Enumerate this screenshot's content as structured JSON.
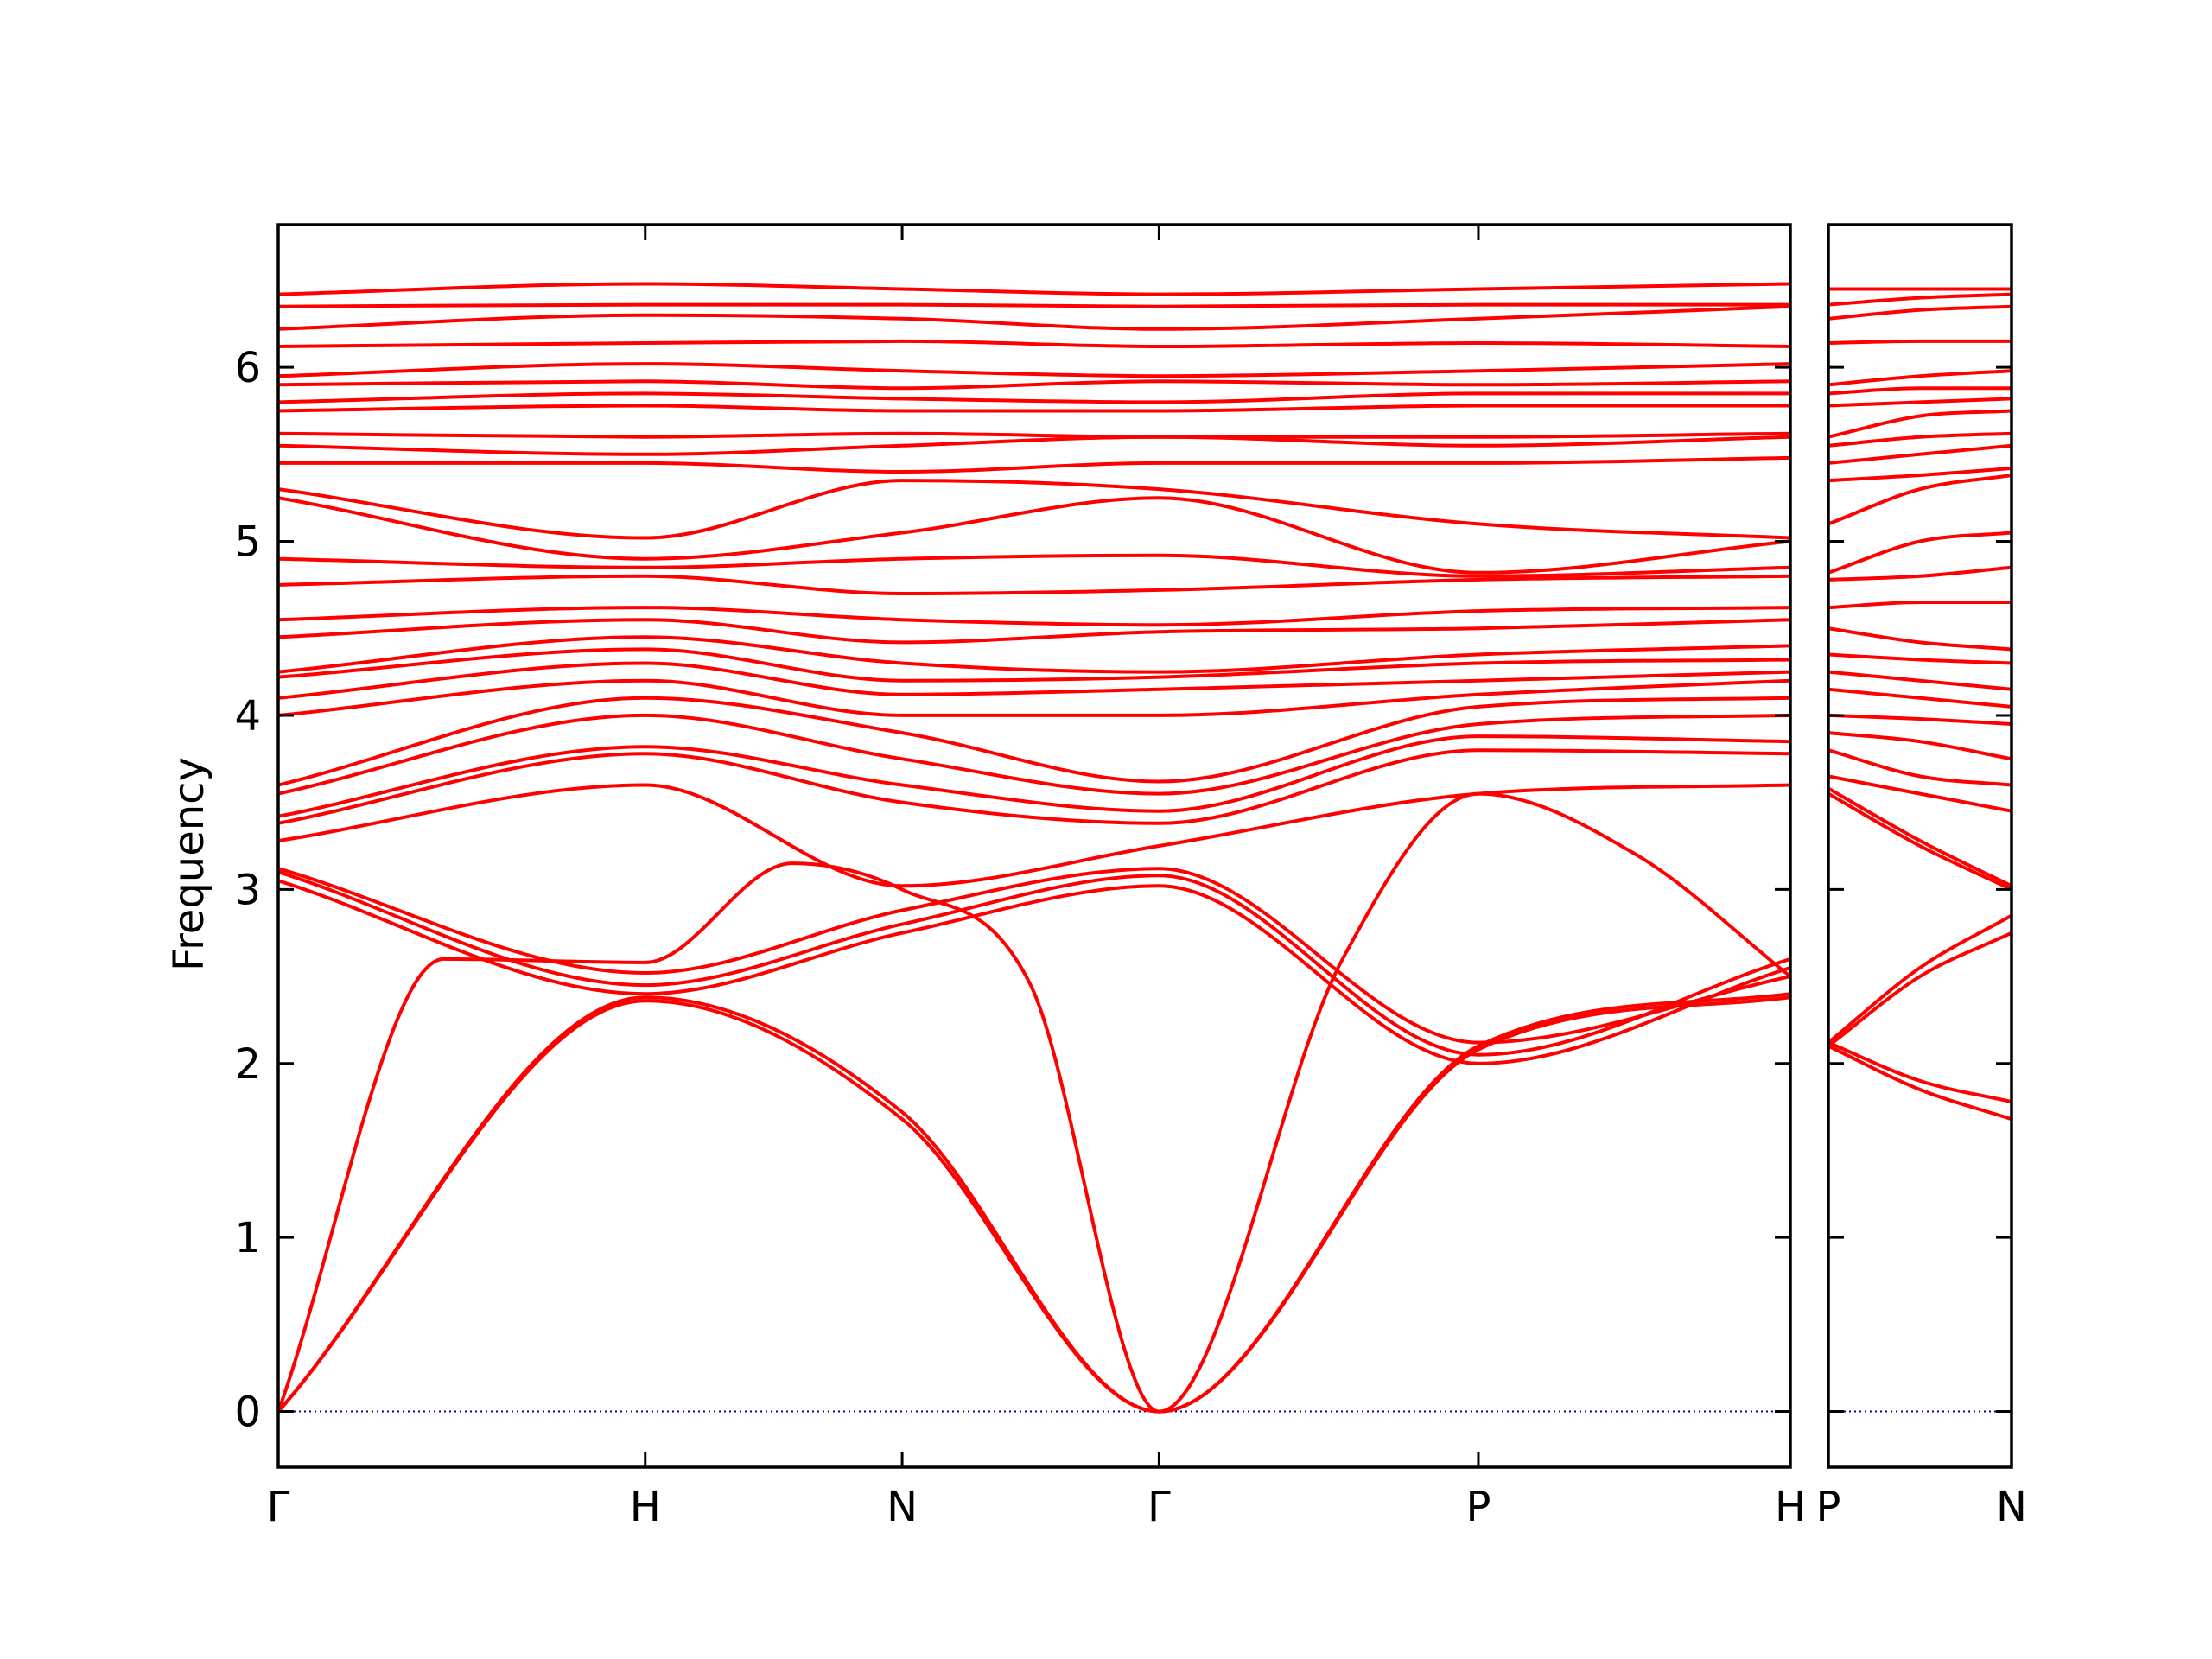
{
  "chart_data": {
    "type": "line",
    "ylabel": "Frequency",
    "ylim": [
      -0.32,
      6.82
    ],
    "yticks": [
      0,
      1,
      2,
      3,
      4,
      5,
      6
    ],
    "colors": {
      "bands": "#ff0000",
      "zero_line": "#0000aa",
      "frame": "#000000"
    },
    "grid": false,
    "panels": [
      {
        "name": "main",
        "x_range": [
          0,
          4.12
        ],
        "x_ticks": [
          {
            "label": "Γ",
            "x": 0
          },
          {
            "label": "H",
            "x": 1.0
          },
          {
            "label": "N",
            "x": 1.7
          },
          {
            "label": "Γ",
            "x": 2.4
          },
          {
            "label": "P",
            "x": 3.27
          },
          {
            "label": "H",
            "x": 4.12
          }
        ],
        "bands": [
          {
            "x": [
              0,
              1.0,
              1.7,
              2.4,
              3.27,
              4.12
            ],
            "y": [
              0,
              2.36,
              1.68,
              0,
              2.08,
              2.38
            ]
          },
          {
            "x": [
              0,
              1.0,
              1.7,
              2.4,
              3.27,
              4.12
            ],
            "y": [
              0,
              2.38,
              1.72,
              0,
              2.1,
              2.4
            ]
          },
          {
            "x": [
              0,
              0.45,
              1.0,
              1.4,
              1.7,
              2.05,
              2.4,
              2.9,
              3.27,
              3.7,
              4.12
            ],
            "y": [
              0,
              2.6,
              2.58,
              3.15,
              3.0,
              2.45,
              0,
              2.6,
              3.55,
              3.2,
              2.5
            ]
          },
          {
            "x": [
              0,
              1.0,
              1.7,
              2.4,
              3.27,
              4.12
            ],
            "y": [
              3.05,
              2.4,
              2.75,
              3.02,
              2.0,
              2.55
            ]
          },
          {
            "x": [
              0,
              1.0,
              1.7,
              2.4,
              3.27,
              4.12
            ],
            "y": [
              3.1,
              2.45,
              2.8,
              3.08,
              2.05,
              2.6
            ]
          },
          {
            "x": [
              0,
              1.0,
              1.7,
              2.4,
              3.27,
              4.12
            ],
            "y": [
              3.12,
              2.52,
              2.88,
              3.12,
              2.12,
              2.5
            ]
          },
          {
            "x": [
              0,
              1.0,
              1.7,
              2.4,
              3.27,
              4.12
            ],
            "y": [
              3.28,
              3.6,
              3.02,
              3.25,
              3.55,
              3.6
            ]
          },
          {
            "x": [
              0,
              1.0,
              1.7,
              2.4,
              3.27,
              4.12
            ],
            "y": [
              3.38,
              3.78,
              3.5,
              3.38,
              3.8,
              3.78
            ]
          },
          {
            "x": [
              0,
              1.0,
              1.7,
              2.4,
              3.27,
              4.12
            ],
            "y": [
              3.42,
              3.82,
              3.6,
              3.45,
              3.88,
              3.85
            ]
          },
          {
            "x": [
              0,
              1.0,
              1.7,
              2.4,
              3.27,
              4.12
            ],
            "y": [
              3.55,
              4.0,
              3.75,
              3.55,
              3.95,
              4.0
            ]
          },
          {
            "x": [
              0,
              1.0,
              1.7,
              2.4,
              3.27,
              4.12
            ],
            "y": [
              3.6,
              4.1,
              3.9,
              3.62,
              4.05,
              4.1
            ]
          },
          {
            "x": [
              0,
              1.0,
              1.7,
              2.4,
              3.27,
              4.12
            ],
            "y": [
              4.0,
              4.2,
              4.0,
              4.0,
              4.12,
              4.2
            ]
          },
          {
            "x": [
              0,
              1.0,
              1.7,
              2.4,
              3.27,
              4.12
            ],
            "y": [
              4.1,
              4.3,
              4.12,
              4.15,
              4.2,
              4.25
            ]
          },
          {
            "x": [
              0,
              1.0,
              1.7,
              2.4,
              3.27,
              4.12
            ],
            "y": [
              4.22,
              4.38,
              4.2,
              4.22,
              4.3,
              4.32
            ]
          },
          {
            "x": [
              0,
              1.0,
              1.7,
              2.4,
              3.27,
              4.12
            ],
            "y": [
              4.25,
              4.45,
              4.3,
              4.25,
              4.35,
              4.4
            ]
          },
          {
            "x": [
              0,
              1.0,
              1.7,
              2.4,
              3.27,
              4.12
            ],
            "y": [
              4.45,
              4.55,
              4.42,
              4.48,
              4.5,
              4.55
            ]
          },
          {
            "x": [
              0,
              1.0,
              1.7,
              2.4,
              3.27,
              4.12
            ],
            "y": [
              4.55,
              4.62,
              4.55,
              4.52,
              4.6,
              4.62
            ]
          },
          {
            "x": [
              0,
              1.0,
              1.7,
              2.4,
              3.27,
              4.12
            ],
            "y": [
              4.75,
              4.8,
              4.7,
              4.72,
              4.78,
              4.8
            ]
          },
          {
            "x": [
              0,
              1.0,
              1.7,
              2.4,
              3.27,
              4.12
            ],
            "y": [
              4.9,
              4.85,
              4.9,
              4.92,
              4.8,
              4.85
            ]
          },
          {
            "x": [
              0,
              1.0,
              1.7,
              2.4,
              3.27,
              4.12
            ],
            "y": [
              5.25,
              4.9,
              5.05,
              5.25,
              4.82,
              5.0
            ]
          },
          {
            "x": [
              0,
              1.0,
              1.7,
              2.4,
              3.27,
              4.12
            ],
            "y": [
              5.3,
              5.02,
              5.35,
              5.3,
              5.1,
              5.02
            ]
          },
          {
            "x": [
              0,
              1.0,
              1.7,
              2.4,
              3.27,
              4.12
            ],
            "y": [
              5.45,
              5.45,
              5.4,
              5.45,
              5.45,
              5.48
            ]
          },
          {
            "x": [
              0,
              1.0,
              1.7,
              2.4,
              3.27,
              4.12
            ],
            "y": [
              5.55,
              5.5,
              5.55,
              5.6,
              5.55,
              5.6
            ]
          },
          {
            "x": [
              0,
              1.0,
              1.7,
              2.4,
              3.27,
              4.12
            ],
            "y": [
              5.62,
              5.6,
              5.62,
              5.6,
              5.6,
              5.62
            ]
          },
          {
            "x": [
              0,
              1.0,
              1.7,
              2.4,
              3.27,
              4.12
            ],
            "y": [
              5.75,
              5.78,
              5.75,
              5.75,
              5.78,
              5.78
            ]
          },
          {
            "x": [
              0,
              1.0,
              1.7,
              2.4,
              3.27,
              4.12
            ],
            "y": [
              5.8,
              5.85,
              5.82,
              5.8,
              5.85,
              5.85
            ]
          },
          {
            "x": [
              0,
              1.0,
              1.7,
              2.4,
              3.27,
              4.12
            ],
            "y": [
              5.9,
              5.92,
              5.88,
              5.92,
              5.9,
              5.92
            ]
          },
          {
            "x": [
              0,
              1.0,
              1.7,
              2.4,
              3.27,
              4.12
            ],
            "y": [
              5.95,
              6.02,
              5.98,
              5.95,
              5.98,
              6.02
            ]
          },
          {
            "x": [
              0,
              1.0,
              1.7,
              2.4,
              3.27,
              4.12
            ],
            "y": [
              6.12,
              6.14,
              6.15,
              6.12,
              6.14,
              6.12
            ]
          },
          {
            "x": [
              0,
              1.0,
              1.7,
              2.4,
              3.27,
              4.12
            ],
            "y": [
              6.22,
              6.3,
              6.28,
              6.22,
              6.28,
              6.35
            ]
          },
          {
            "x": [
              0,
              1.0,
              1.7,
              2.4,
              3.27,
              4.12
            ],
            "y": [
              6.35,
              6.36,
              6.36,
              6.35,
              6.36,
              6.36
            ]
          },
          {
            "x": [
              0,
              1.0,
              1.7,
              2.4,
              3.27,
              4.12
            ],
            "y": [
              6.42,
              6.48,
              6.45,
              6.42,
              6.45,
              6.48
            ]
          }
        ]
      },
      {
        "name": "side",
        "x_range": [
          0,
          1.0
        ],
        "x_ticks": [
          {
            "label": "P",
            "x": 0
          },
          {
            "label": "N",
            "x": 1.0
          }
        ],
        "bands": [
          {
            "x": [
              0,
              0.5,
              1.0
            ],
            "y": [
              2.1,
              1.85,
              1.68
            ]
          },
          {
            "x": [
              0,
              0.5,
              1.0
            ],
            "y": [
              2.12,
              1.9,
              1.78
            ]
          },
          {
            "x": [
              0,
              0.5,
              1.0
            ],
            "y": [
              2.1,
              2.5,
              2.75
            ]
          },
          {
            "x": [
              0,
              0.5,
              1.0
            ],
            "y": [
              2.12,
              2.55,
              2.85
            ]
          },
          {
            "x": [
              0,
              0.5,
              1.0
            ],
            "y": [
              3.55,
              3.25,
              3.0
            ]
          },
          {
            "x": [
              0,
              0.5,
              1.0
            ],
            "y": [
              3.58,
              3.28,
              3.02
            ]
          },
          {
            "x": [
              0,
              0.5,
              1.0
            ],
            "y": [
              3.65,
              3.55,
              3.45
            ]
          },
          {
            "x": [
              0,
              0.5,
              1.0
            ],
            "y": [
              3.8,
              3.65,
              3.6
            ]
          },
          {
            "x": [
              0,
              0.5,
              1.0
            ],
            "y": [
              3.9,
              3.85,
              3.75
            ]
          },
          {
            "x": [
              0,
              0.5,
              1.0
            ],
            "y": [
              4.0,
              3.98,
              3.95
            ]
          },
          {
            "x": [
              0,
              0.5,
              1.0
            ],
            "y": [
              4.15,
              4.1,
              4.05
            ]
          },
          {
            "x": [
              0,
              0.5,
              1.0
            ],
            "y": [
              4.25,
              4.2,
              4.15
            ]
          },
          {
            "x": [
              0,
              0.5,
              1.0
            ],
            "y": [
              4.35,
              4.32,
              4.3
            ]
          },
          {
            "x": [
              0,
              0.5,
              1.0
            ],
            "y": [
              4.5,
              4.42,
              4.38
            ]
          },
          {
            "x": [
              0,
              0.5,
              1.0
            ],
            "y": [
              4.62,
              4.65,
              4.65
            ]
          },
          {
            "x": [
              0,
              0.5,
              1.0
            ],
            "y": [
              4.78,
              4.8,
              4.85
            ]
          },
          {
            "x": [
              0,
              0.5,
              1.0
            ],
            "y": [
              4.82,
              5.0,
              5.05
            ]
          },
          {
            "x": [
              0,
              0.5,
              1.0
            ],
            "y": [
              5.1,
              5.3,
              5.38
            ]
          },
          {
            "x": [
              0,
              0.5,
              1.0
            ],
            "y": [
              5.35,
              5.38,
              5.42
            ]
          },
          {
            "x": [
              0,
              0.5,
              1.0
            ],
            "y": [
              5.45,
              5.5,
              5.55
            ]
          },
          {
            "x": [
              0,
              0.5,
              1.0
            ],
            "y": [
              5.55,
              5.6,
              5.62
            ]
          },
          {
            "x": [
              0,
              0.5,
              1.0
            ],
            "y": [
              5.6,
              5.72,
              5.75
            ]
          },
          {
            "x": [
              0,
              0.5,
              1.0
            ],
            "y": [
              5.78,
              5.8,
              5.82
            ]
          },
          {
            "x": [
              0,
              0.5,
              1.0
            ],
            "y": [
              5.85,
              5.88,
              5.88
            ]
          },
          {
            "x": [
              0,
              0.5,
              1.0
            ],
            "y": [
              5.9,
              5.95,
              5.98
            ]
          },
          {
            "x": [
              0,
              0.5,
              1.0
            ],
            "y": [
              6.14,
              6.15,
              6.15
            ]
          },
          {
            "x": [
              0,
              0.5,
              1.0
            ],
            "y": [
              6.28,
              6.33,
              6.35
            ]
          },
          {
            "x": [
              0,
              0.5,
              1.0
            ],
            "y": [
              6.36,
              6.4,
              6.42
            ]
          },
          {
            "x": [
              0,
              0.5,
              1.0
            ],
            "y": [
              6.45,
              6.45,
              6.45
            ]
          }
        ]
      }
    ]
  }
}
